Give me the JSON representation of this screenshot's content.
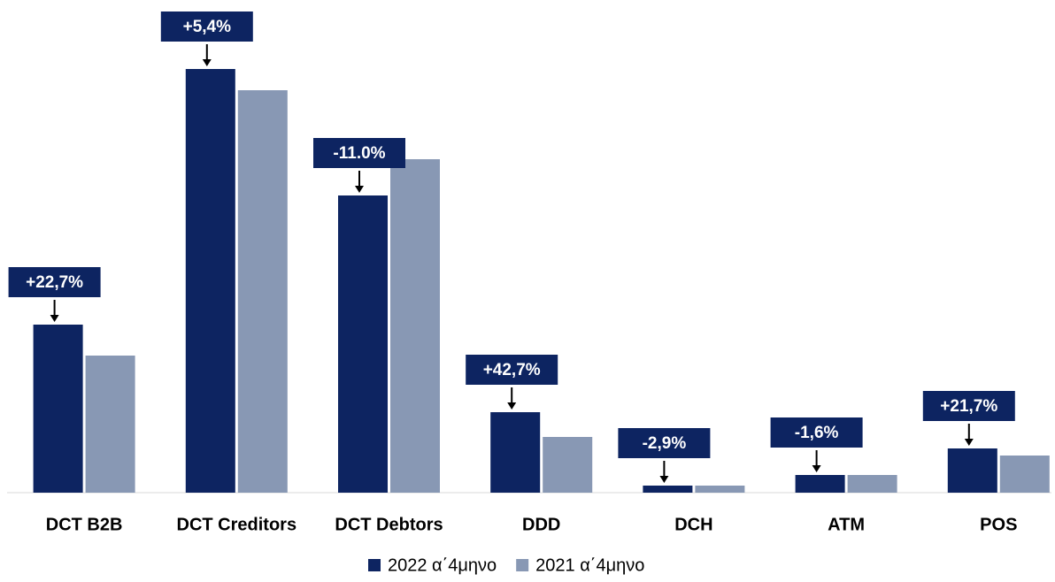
{
  "chart_data": {
    "type": "bar",
    "categories": [
      "DCT B2B",
      "DCT Creditors",
      "DCT Debtors",
      "DDD",
      "DCH",
      "ATM",
      "POS"
    ],
    "series": [
      {
        "name": "2022 α΄4μηνο",
        "color": "#0d2461",
        "values": [
          190,
          479,
          336,
          91,
          8,
          20,
          50
        ]
      },
      {
        "name": "2021 α΄4μηνο",
        "color": "#8898b4",
        "values": [
          155,
          455,
          377,
          63,
          8,
          20,
          42
        ]
      }
    ],
    "annotations": [
      "+22,7%",
      "+5,4%",
      "-11.0%",
      "+42,7%",
      "-2,9%",
      "-1,6%",
      "+21,7%"
    ],
    "ylim": [
      0,
      540
    ]
  }
}
